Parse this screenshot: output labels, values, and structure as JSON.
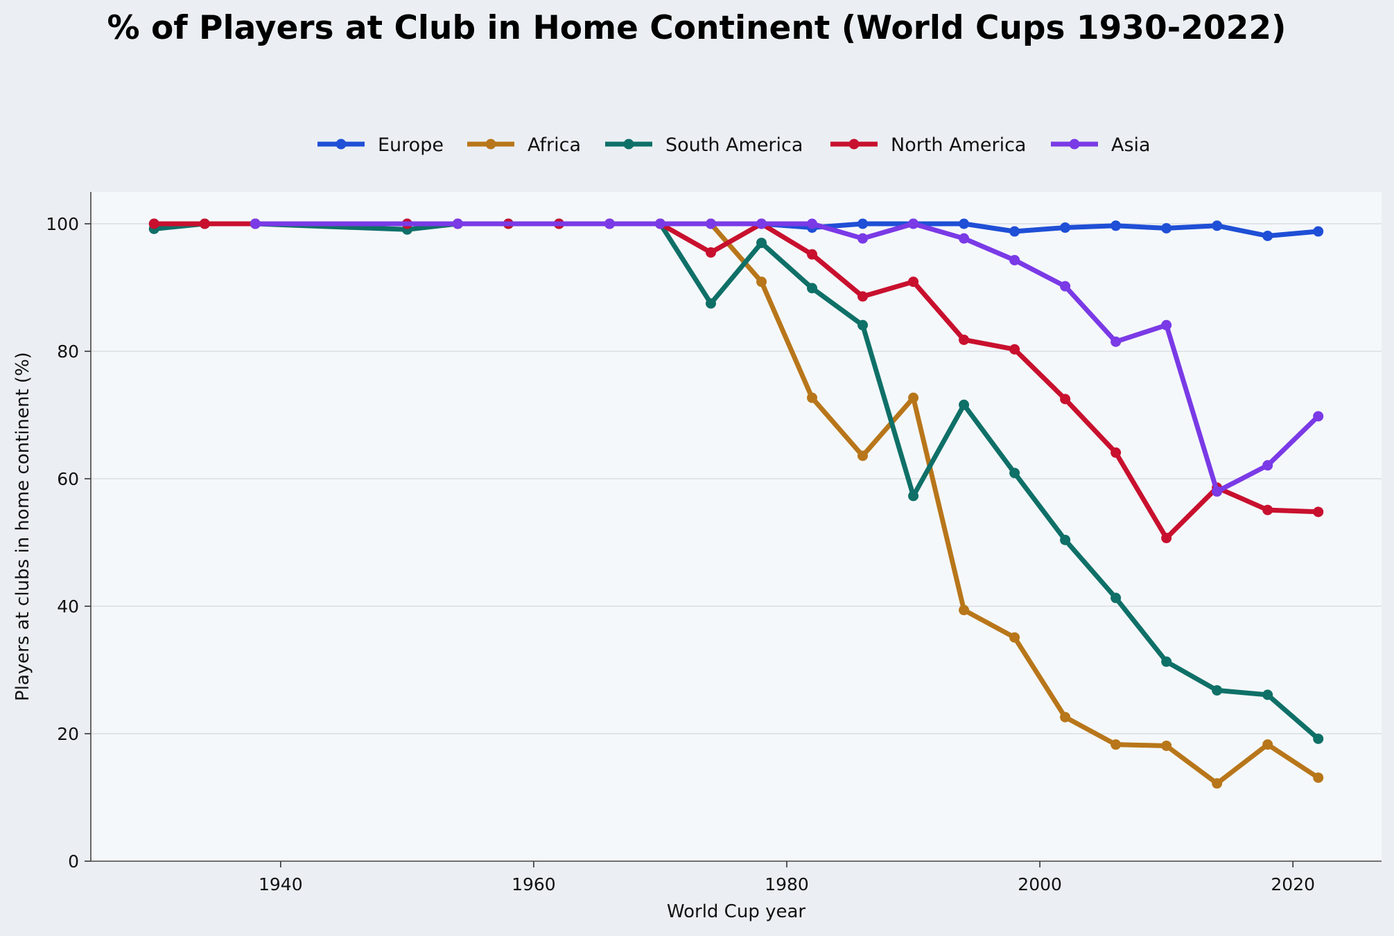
{
  "chart_data": {
    "type": "line",
    "title": "% of Players at Club in Home Continent (World Cups 1930-2022)",
    "xlabel": "World Cup year",
    "ylabel": "Players at clubs in home continent (%)",
    "xlim": [
      1925,
      2027
    ],
    "ylim": [
      0,
      105
    ],
    "xticks": [
      1940,
      1960,
      1980,
      2000,
      2020
    ],
    "yticks": [
      0,
      20,
      40,
      60,
      80,
      100
    ],
    "grid": "horizontal",
    "legend_position": "top-center",
    "series": [
      {
        "name": "Europe",
        "color": "#1f4fd6",
        "x": [
          1930,
          1934,
          1938,
          1950,
          1954,
          1958,
          1962,
          1966,
          1970,
          1974,
          1978,
          1982,
          1986,
          1990,
          1994,
          1998,
          2002,
          2006,
          2010,
          2014,
          2018,
          2022
        ],
        "y": [
          100,
          100,
          100,
          100,
          100,
          100,
          100,
          100,
          100,
          100,
          100,
          99.4,
          100,
          100,
          100,
          98.8,
          99.4,
          99.7,
          99.3,
          99.7,
          98.1,
          98.8
        ]
      },
      {
        "name": "Africa",
        "color": "#b8761a",
        "x": [
          1934,
          1970,
          1974,
          1978,
          1982,
          1986,
          1990,
          1994,
          1998,
          2002,
          2006,
          2010,
          2014,
          2018,
          2022
        ],
        "y": [
          100,
          100,
          100,
          90.9,
          72.7,
          63.6,
          72.7,
          39.4,
          35.1,
          22.6,
          18.3,
          18.1,
          12.2,
          18.3,
          13.1
        ]
      },
      {
        "name": "South America",
        "color": "#0f7068",
        "x": [
          1930,
          1934,
          1938,
          1950,
          1954,
          1958,
          1962,
          1966,
          1970,
          1974,
          1978,
          1982,
          1986,
          1990,
          1994,
          1998,
          2002,
          2006,
          2010,
          2014,
          2018,
          2022
        ],
        "y": [
          99.2,
          100,
          100,
          99.1,
          100,
          100,
          100,
          100,
          100,
          87.5,
          97,
          89.9,
          84.1,
          57.3,
          71.6,
          60.9,
          50.4,
          41.3,
          31.3,
          26.8,
          26.1,
          19.2
        ]
      },
      {
        "name": "North America",
        "color": "#c8102e",
        "x": [
          1930,
          1934,
          1938,
          1950,
          1954,
          1958,
          1962,
          1966,
          1970,
          1974,
          1978,
          1982,
          1986,
          1990,
          1994,
          1998,
          2002,
          2006,
          2010,
          2014,
          2018,
          2022
        ],
        "y": [
          100,
          100,
          100,
          100,
          100,
          100,
          100,
          100,
          100,
          95.5,
          100,
          95.2,
          88.6,
          90.9,
          81.8,
          80.3,
          72.5,
          64.1,
          50.7,
          58.6,
          55.1,
          54.8
        ]
      },
      {
        "name": "Asia",
        "color": "#7a3ae6",
        "x": [
          1938,
          1954,
          1966,
          1970,
          1974,
          1978,
          1982,
          1986,
          1990,
          1994,
          1998,
          2002,
          2006,
          2010,
          2014,
          2018,
          2022
        ],
        "y": [
          100,
          100,
          100,
          100,
          100,
          100,
          100,
          97.7,
          100,
          97.7,
          94.3,
          90.2,
          81.5,
          84.1,
          58,
          62.1,
          69.8
        ]
      }
    ]
  }
}
